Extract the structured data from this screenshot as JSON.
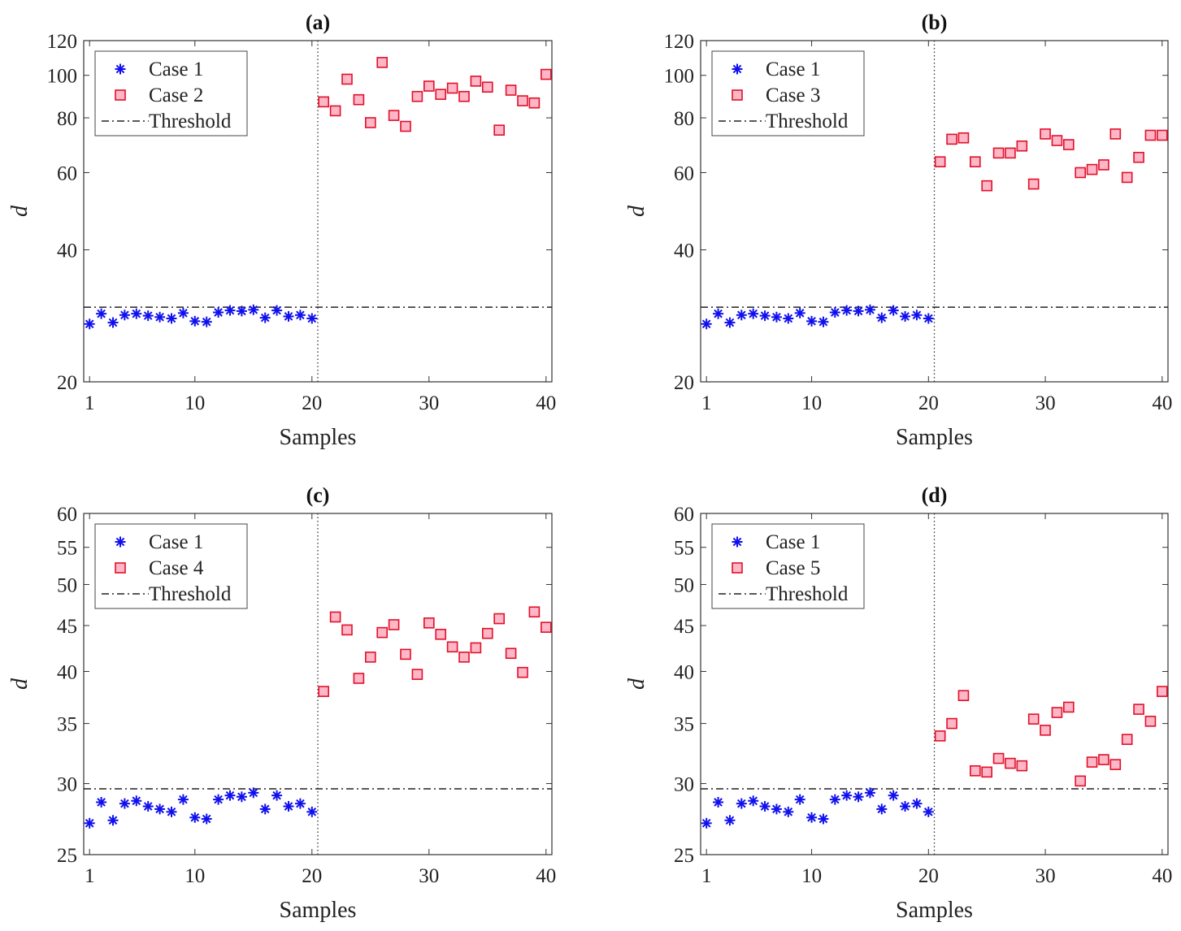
{
  "colors": {
    "case1": "#1010ee",
    "other_fill": "#ffb6c6",
    "other_stroke": "#e0102a",
    "threshold": "#222222",
    "axes": "#333333"
  },
  "chart_data": [
    {
      "type": "scatter",
      "title": "(a)",
      "xlabel": "Samples",
      "ylabel": "d",
      "yscale": "log",
      "xlim": [
        0.5,
        40.5
      ],
      "ylim": [
        20,
        120
      ],
      "xticks": [
        1,
        10,
        20,
        30,
        40
      ],
      "xtick_labels": [
        "1",
        "10",
        "20",
        "30",
        "40"
      ],
      "yticks": [
        20,
        40,
        60,
        80,
        100,
        120
      ],
      "ytick_labels": [
        "20",
        "40",
        "60",
        "80",
        "100",
        "120"
      ],
      "threshold": 29.6,
      "divider_x": 20.5,
      "legend": [
        "Case 1",
        "Case 2",
        "Threshold"
      ],
      "legend_position": "top-left",
      "series": [
        {
          "name": "Case 1",
          "marker": "asterisk",
          "x": [
            1,
            2,
            3,
            4,
            5,
            6,
            7,
            8,
            9,
            10,
            11,
            12,
            13,
            14,
            15,
            16,
            17,
            18,
            19,
            20
          ],
          "values": [
            27.1,
            28.6,
            27.3,
            28.4,
            28.6,
            28.3,
            28.1,
            27.9,
            28.7,
            27.5,
            27.4,
            28.8,
            29.1,
            29.0,
            29.2,
            28.0,
            29.1,
            28.2,
            28.4,
            27.9
          ]
        },
        {
          "name": "Case 2",
          "marker": "square",
          "x": [
            21,
            22,
            23,
            24,
            25,
            26,
            27,
            28,
            29,
            30,
            31,
            32,
            33,
            34,
            35,
            36,
            37,
            38,
            39,
            40
          ],
          "values": [
            87.0,
            83.0,
            98.0,
            88.0,
            78.0,
            107.0,
            81.0,
            76.5,
            89.5,
            94.5,
            90.5,
            93.5,
            89.5,
            97.0,
            94.0,
            75.0,
            92.5,
            87.5,
            86.5,
            100.5
          ]
        }
      ]
    },
    {
      "type": "scatter",
      "title": "(b)",
      "xlabel": "Samples",
      "ylabel": "d",
      "yscale": "log",
      "xlim": [
        0.5,
        40.5
      ],
      "ylim": [
        20,
        120
      ],
      "xticks": [
        1,
        10,
        20,
        30,
        40
      ],
      "xtick_labels": [
        "1",
        "10",
        "20",
        "30",
        "40"
      ],
      "yticks": [
        20,
        40,
        60,
        80,
        100,
        120
      ],
      "ytick_labels": [
        "20",
        "40",
        "60",
        "80",
        "100",
        "120"
      ],
      "threshold": 29.6,
      "divider_x": 20.5,
      "legend": [
        "Case 1",
        "Case 3",
        "Threshold"
      ],
      "legend_position": "top-left",
      "series": [
        {
          "name": "Case 1",
          "marker": "asterisk",
          "x": [
            1,
            2,
            3,
            4,
            5,
            6,
            7,
            8,
            9,
            10,
            11,
            12,
            13,
            14,
            15,
            16,
            17,
            18,
            19,
            20
          ],
          "values": [
            27.1,
            28.6,
            27.3,
            28.4,
            28.6,
            28.3,
            28.1,
            27.9,
            28.7,
            27.5,
            27.4,
            28.8,
            29.1,
            29.0,
            29.2,
            28.0,
            29.1,
            28.2,
            28.4,
            27.9
          ]
        },
        {
          "name": "Case 3",
          "marker": "square",
          "x": [
            21,
            22,
            23,
            24,
            25,
            26,
            27,
            28,
            29,
            30,
            31,
            32,
            33,
            34,
            35,
            36,
            37,
            38,
            39,
            40
          ],
          "values": [
            63.5,
            71.5,
            72.0,
            63.5,
            56.0,
            66.5,
            66.5,
            69.0,
            56.5,
            73.5,
            71.0,
            69.5,
            60.0,
            61.0,
            62.5,
            73.5,
            58.5,
            65.0,
            73.0,
            73.0
          ]
        }
      ]
    },
    {
      "type": "scatter",
      "title": "(c)",
      "xlabel": "Samples",
      "ylabel": "d",
      "yscale": "log",
      "xlim": [
        0.5,
        40.5
      ],
      "ylim": [
        25,
        60
      ],
      "xticks": [
        1,
        10,
        20,
        30,
        40
      ],
      "xtick_labels": [
        "1",
        "10",
        "20",
        "30",
        "40"
      ],
      "yticks": [
        25,
        30,
        35,
        40,
        45,
        50,
        55,
        60
      ],
      "ytick_labels": [
        "25",
        "30",
        "35",
        "40",
        "45",
        "50",
        "55",
        "60"
      ],
      "threshold": 29.6,
      "divider_x": 20.5,
      "legend": [
        "Case 1",
        "Case 4",
        "Threshold"
      ],
      "legend_position": "top-left",
      "series": [
        {
          "name": "Case 1",
          "marker": "asterisk",
          "x": [
            1,
            2,
            3,
            4,
            5,
            6,
            7,
            8,
            9,
            10,
            11,
            12,
            13,
            14,
            15,
            16,
            17,
            18,
            19,
            20
          ],
          "values": [
            27.1,
            28.6,
            27.3,
            28.5,
            28.7,
            28.3,
            28.1,
            27.9,
            28.8,
            27.5,
            27.4,
            28.8,
            29.1,
            29.0,
            29.3,
            28.1,
            29.1,
            28.3,
            28.5,
            27.9
          ]
        },
        {
          "name": "Case 4",
          "marker": "square",
          "x": [
            21,
            22,
            23,
            24,
            25,
            26,
            27,
            28,
            29,
            30,
            31,
            32,
            33,
            34,
            35,
            36,
            37,
            38,
            39,
            40
          ],
          "values": [
            38.0,
            46.0,
            44.5,
            39.3,
            41.5,
            44.2,
            45.1,
            41.8,
            39.7,
            45.3,
            44.0,
            42.6,
            41.5,
            42.5,
            44.1,
            45.8,
            41.9,
            39.9,
            46.6,
            44.8
          ]
        }
      ]
    },
    {
      "type": "scatter",
      "title": "(d)",
      "xlabel": "Samples",
      "ylabel": "d",
      "yscale": "log",
      "xlim": [
        0.5,
        40.5
      ],
      "ylim": [
        25,
        60
      ],
      "xticks": [
        1,
        10,
        20,
        30,
        40
      ],
      "xtick_labels": [
        "1",
        "10",
        "20",
        "30",
        "40"
      ],
      "yticks": [
        25,
        30,
        35,
        40,
        45,
        50,
        55,
        60
      ],
      "ytick_labels": [
        "25",
        "30",
        "35",
        "40",
        "45",
        "50",
        "55",
        "60"
      ],
      "threshold": 29.6,
      "divider_x": 20.5,
      "legend": [
        "Case 1",
        "Case 5",
        "Threshold"
      ],
      "legend_position": "top-left",
      "series": [
        {
          "name": "Case 1",
          "marker": "asterisk",
          "x": [
            1,
            2,
            3,
            4,
            5,
            6,
            7,
            8,
            9,
            10,
            11,
            12,
            13,
            14,
            15,
            16,
            17,
            18,
            19,
            20
          ],
          "values": [
            27.1,
            28.6,
            27.3,
            28.5,
            28.7,
            28.3,
            28.1,
            27.9,
            28.8,
            27.5,
            27.4,
            28.8,
            29.1,
            29.0,
            29.3,
            28.1,
            29.1,
            28.3,
            28.5,
            27.9
          ]
        },
        {
          "name": "Case 5",
          "marker": "square",
          "x": [
            21,
            22,
            23,
            24,
            25,
            26,
            27,
            28,
            29,
            30,
            31,
            32,
            33,
            34,
            35,
            36,
            37,
            38,
            39,
            40
          ],
          "values": [
            33.9,
            35.0,
            37.6,
            31.0,
            30.9,
            32.0,
            31.6,
            31.4,
            35.4,
            34.4,
            36.0,
            36.5,
            30.2,
            31.7,
            31.9,
            31.5,
            33.6,
            36.3,
            35.2,
            38.0
          ]
        }
      ]
    }
  ]
}
